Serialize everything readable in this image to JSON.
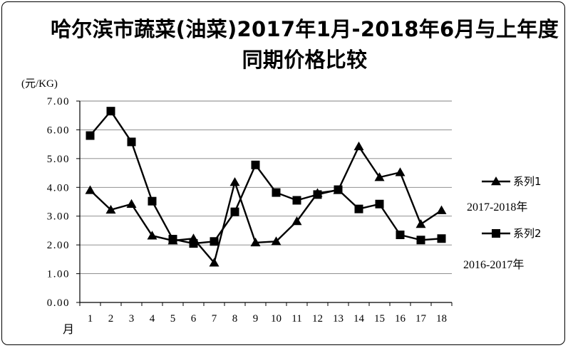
{
  "chart_data": {
    "type": "line",
    "title": "哈尔滨市蔬菜(油菜)2017年1月-2018年6月与上年度同期价格比较",
    "ylabel": "(元/KG)",
    "xlabel": "月",
    "ylim": [
      0,
      7
    ],
    "yticks": [
      "0.00",
      "1.00",
      "2.00",
      "3.00",
      "4.00",
      "5.00",
      "6.00",
      "7.00"
    ],
    "categories": [
      "1",
      "2",
      "3",
      "4",
      "5",
      "6",
      "7",
      "8",
      "9",
      "10",
      "11",
      "12",
      "13",
      "14",
      "15",
      "16",
      "17",
      "18"
    ],
    "grid": true,
    "legend_position": "right",
    "series": [
      {
        "name": "系列1",
        "note": "2017-2018年",
        "marker": "triangle",
        "values": [
          3.9,
          3.22,
          3.42,
          2.32,
          2.15,
          2.22,
          1.38,
          4.18,
          2.08,
          2.12,
          2.82,
          3.8,
          3.9,
          5.42,
          4.35,
          4.52,
          2.72,
          3.2
        ]
      },
      {
        "name": "系列2",
        "note": "2016-2017年",
        "marker": "square",
        "values": [
          5.8,
          6.65,
          5.58,
          3.52,
          2.2,
          2.05,
          2.12,
          3.15,
          4.78,
          3.82,
          3.55,
          3.75,
          3.92,
          3.25,
          3.42,
          2.35,
          2.17,
          2.22
        ]
      }
    ]
  }
}
